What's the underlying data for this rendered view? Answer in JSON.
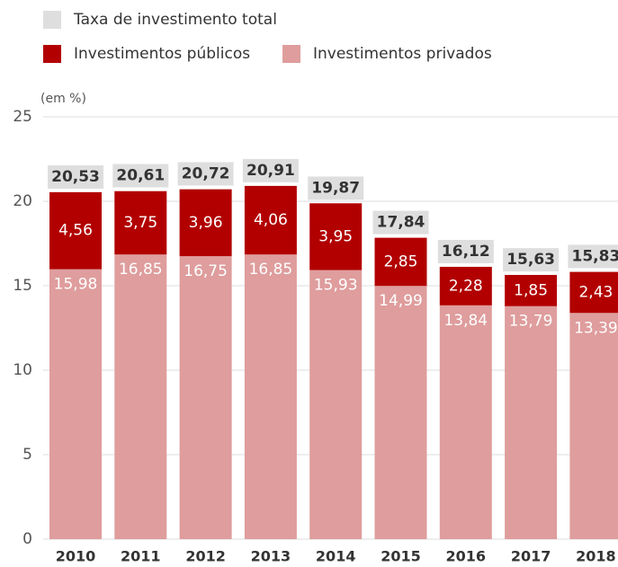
{
  "chart_data": {
    "type": "stacked_bar",
    "axis_unit_label": "(em %)",
    "categories": [
      "2010",
      "2011",
      "2012",
      "2013",
      "2014",
      "2015",
      "2016",
      "2017",
      "2018"
    ],
    "series": [
      {
        "name": "Investimentos privados",
        "color": "#df9d9d",
        "values": [
          15.98,
          16.85,
          16.75,
          16.85,
          15.93,
          14.99,
          13.84,
          13.79,
          13.39
        ],
        "value_labels": [
          "15,98",
          "16,85",
          "16,75",
          "16,85",
          "15,93",
          "14,99",
          "13,84",
          "13,79",
          "13,39"
        ]
      },
      {
        "name": "Investimentos públicos",
        "color": "#b20000",
        "values": [
          4.56,
          3.75,
          3.96,
          4.06,
          3.95,
          2.85,
          2.28,
          1.85,
          2.43
        ],
        "value_labels": [
          "4,56",
          "3,75",
          "3,96",
          "4,06",
          "3,95",
          "2,85",
          "2,28",
          "1,85",
          "2,43"
        ]
      }
    ],
    "totals": {
      "name": "Taxa de investimento total",
      "color": "#dedede",
      "values": [
        20.53,
        20.61,
        20.72,
        20.91,
        19.87,
        17.84,
        16.12,
        15.63,
        15.83
      ],
      "value_labels": [
        "20,53",
        "20,61",
        "20,72",
        "20,91",
        "19,87",
        "17,84",
        "16,12",
        "15,63",
        "15,83"
      ]
    },
    "ylim": [
      0,
      25
    ],
    "yticks": [
      0,
      5,
      10,
      15,
      20,
      25
    ],
    "grid": true
  }
}
